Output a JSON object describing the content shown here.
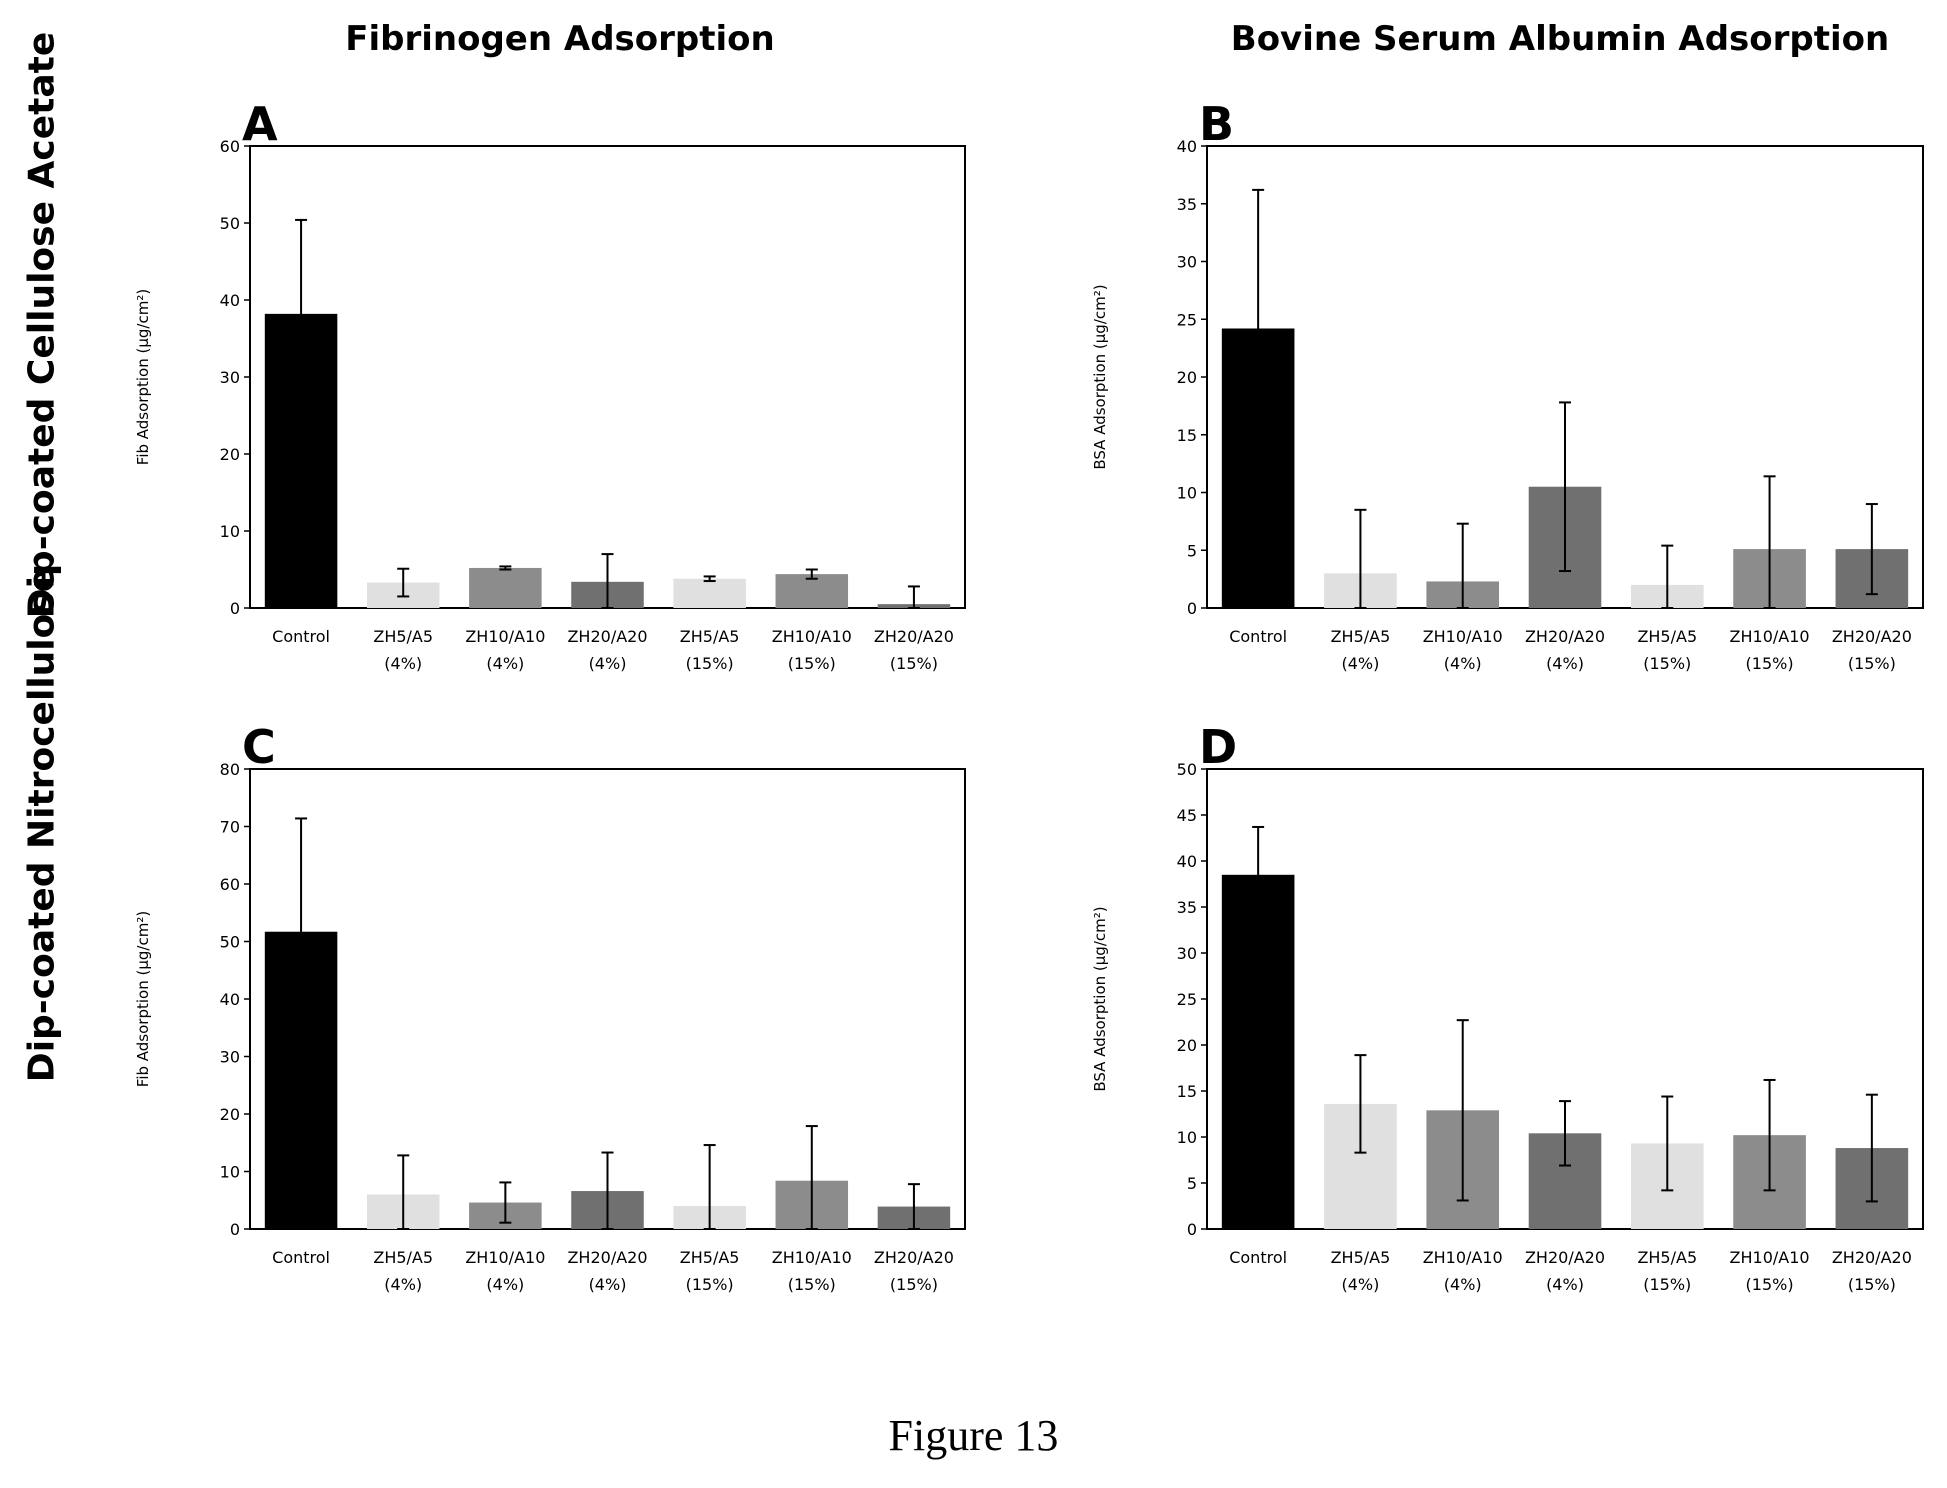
{
  "column_titles": [
    "Fibrinogen Adsorption",
    "Bovine Serum Albumin Adsorption"
  ],
  "row_titles": [
    "Dip-coated Cellulose Acetate",
    "Dip-coated Nitrocellulose"
  ],
  "figure_caption": "Figure 13",
  "colors": {
    "control": "#000000",
    "light": "#e0e0e0",
    "medium": "#8c8c8c",
    "dark": "#707070",
    "error_bar": "#000000"
  },
  "chart_data": [
    {
      "type": "bar",
      "panel_label": "A",
      "categories": [
        [
          "Control"
        ],
        [
          "ZH5/A5",
          "(4%)"
        ],
        [
          "ZH10/A10",
          "(4%)"
        ],
        [
          "ZH20/A20",
          "(4%)"
        ],
        [
          "ZH5/A5",
          "(15%)"
        ],
        [
          "ZH10/A10",
          "(15%)"
        ],
        [
          "ZH20/A20",
          "(15%)"
        ]
      ],
      "values": [
        38.2,
        3.3,
        5.2,
        3.4,
        3.8,
        4.4,
        0.5
      ],
      "errors": [
        12.2,
        1.8,
        0.2,
        3.6,
        0.3,
        0.6,
        2.3
      ],
      "bar_shades": [
        "control",
        "light",
        "medium",
        "dark",
        "light",
        "medium",
        "dark"
      ],
      "ylabel": "Fib Adsorption (µg/cm²)",
      "ylim": [
        0,
        60
      ],
      "yticks": [
        0,
        10,
        20,
        30,
        40,
        50,
        60
      ]
    },
    {
      "type": "bar",
      "panel_label": "B",
      "categories": [
        [
          "Control"
        ],
        [
          "ZH5/A5",
          "(4%)"
        ],
        [
          "ZH10/A10",
          "(4%)"
        ],
        [
          "ZH20/A20",
          "(4%)"
        ],
        [
          "ZH5/A5",
          "(15%)"
        ],
        [
          "ZH10/A10",
          "(15%)"
        ],
        [
          "ZH20/A20",
          "(15%)"
        ]
      ],
      "values": [
        24.2,
        3.0,
        2.3,
        10.5,
        2.0,
        5.1,
        5.1
      ],
      "errors": [
        12.0,
        5.5,
        5.0,
        7.3,
        3.4,
        6.3,
        3.9
      ],
      "bar_shades": [
        "control",
        "light",
        "medium",
        "dark",
        "light",
        "medium",
        "dark"
      ],
      "ylabel": "BSA Adsorption (µg/cm²)",
      "ylim": [
        0,
        40
      ],
      "yticks": [
        0,
        5,
        10,
        15,
        20,
        25,
        30,
        35,
        40
      ]
    },
    {
      "type": "bar",
      "panel_label": "C",
      "categories": [
        [
          "Control"
        ],
        [
          "ZH5/A5",
          "(4%)"
        ],
        [
          "ZH10/A10",
          "(4%)"
        ],
        [
          "ZH20/A20",
          "(4%)"
        ],
        [
          "ZH5/A5",
          "(15%)"
        ],
        [
          "ZH10/A10",
          "(15%)"
        ],
        [
          "ZH20/A20",
          "(15%)"
        ]
      ],
      "values": [
        51.7,
        6.0,
        4.6,
        6.6,
        4.0,
        8.4,
        3.9
      ],
      "errors": [
        19.7,
        6.8,
        3.5,
        6.7,
        10.6,
        9.5,
        3.9
      ],
      "bar_shades": [
        "control",
        "light",
        "medium",
        "dark",
        "light",
        "medium",
        "dark"
      ],
      "ylabel": "Fib Adsorption (µg/cm²)",
      "ylim": [
        0,
        80
      ],
      "yticks": [
        0,
        10,
        20,
        30,
        40,
        50,
        60,
        70,
        80
      ]
    },
    {
      "type": "bar",
      "panel_label": "D",
      "categories": [
        [
          "Control"
        ],
        [
          "ZH5/A5",
          "(4%)"
        ],
        [
          "ZH10/A10",
          "(4%)"
        ],
        [
          "ZH20/A20",
          "(4%)"
        ],
        [
          "ZH5/A5",
          "(15%)"
        ],
        [
          "ZH10/A10",
          "(15%)"
        ],
        [
          "ZH20/A20",
          "(15%)"
        ]
      ],
      "values": [
        38.5,
        13.6,
        12.9,
        10.4,
        9.3,
        10.2,
        8.8
      ],
      "errors": [
        5.2,
        5.3,
        9.8,
        3.5,
        5.1,
        6.0,
        5.8
      ],
      "bar_shades": [
        "control",
        "light",
        "medium",
        "dark",
        "light",
        "medium",
        "dark"
      ],
      "ylabel": "BSA Adsorption (µg/cm²)",
      "ylim": [
        0,
        50
      ],
      "yticks": [
        0,
        5,
        10,
        15,
        20,
        25,
        30,
        35,
        40,
        45,
        50
      ]
    }
  ]
}
